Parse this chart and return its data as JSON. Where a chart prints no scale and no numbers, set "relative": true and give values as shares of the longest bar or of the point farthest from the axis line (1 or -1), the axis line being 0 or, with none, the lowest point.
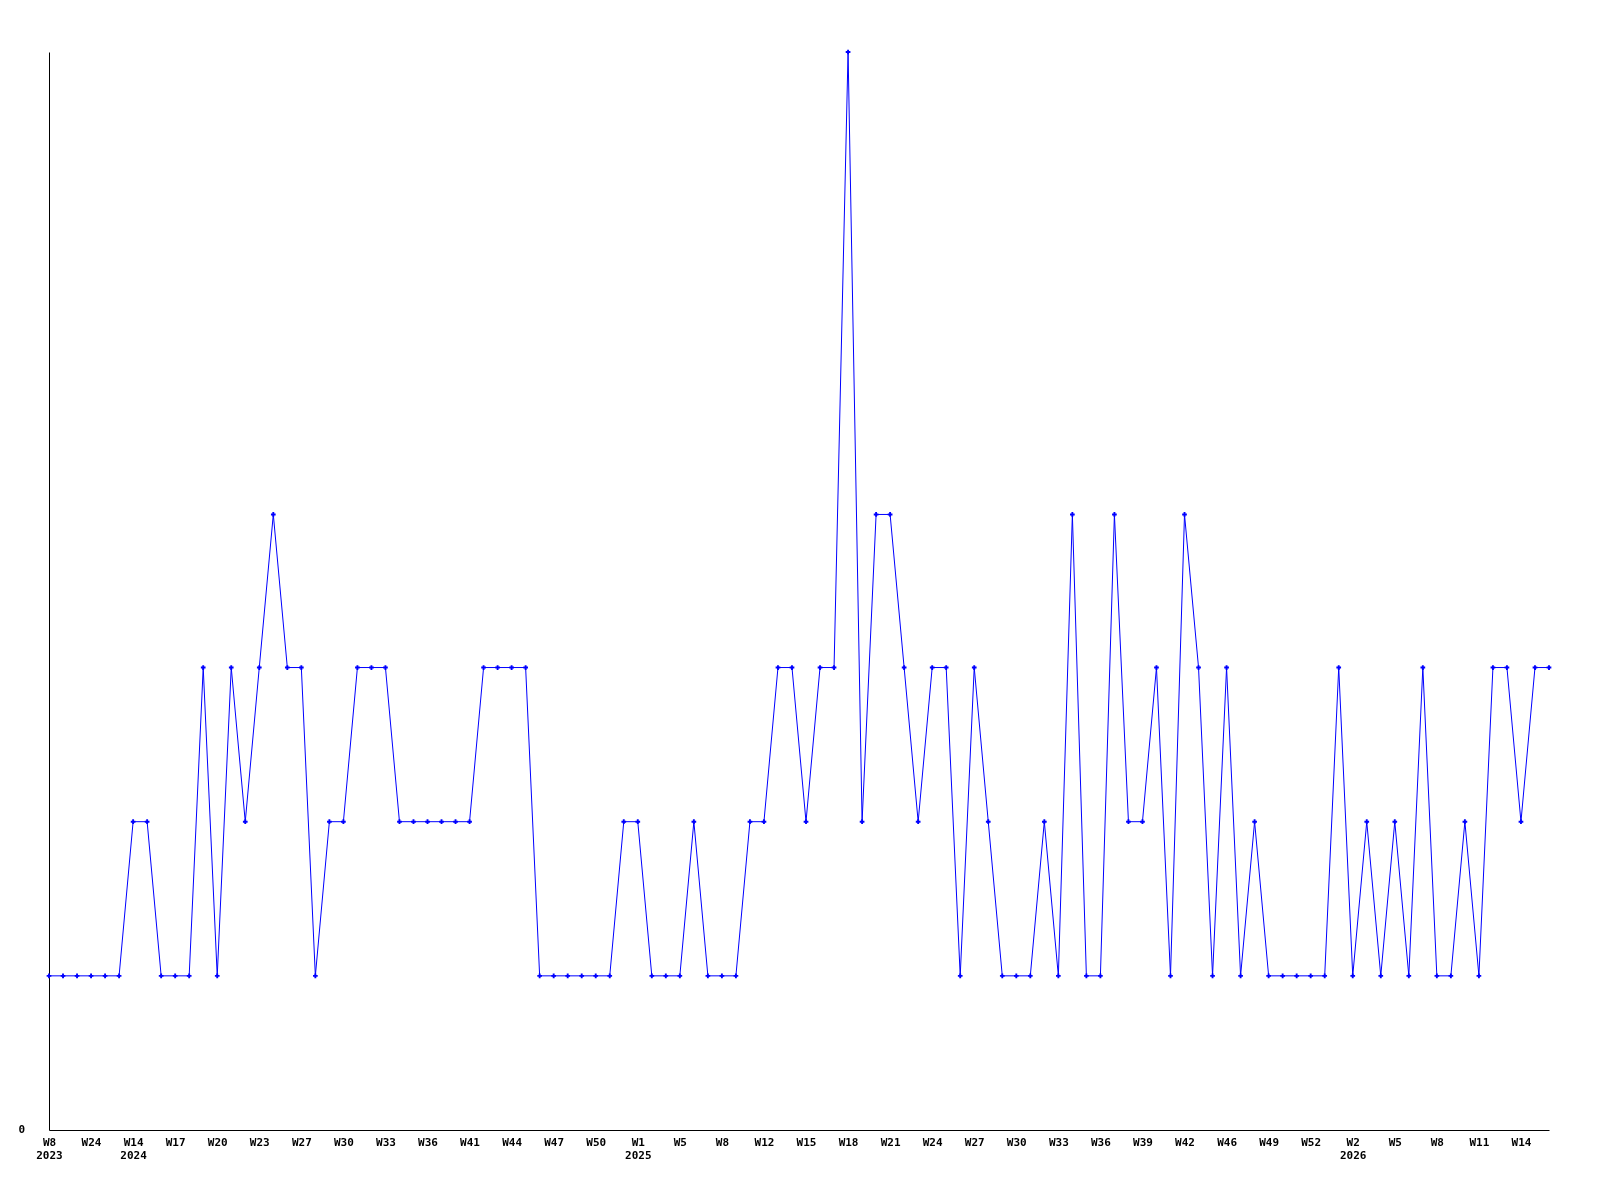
{
  "chart_data": {
    "type": "line",
    "relative": true,
    "marker": "cross",
    "line_style": "solid",
    "grid": false,
    "categories": [
      "W8\n2023",
      null,
      null,
      "W24",
      null,
      null,
      "W14\n2024",
      null,
      null,
      "W17",
      null,
      null,
      "W20",
      null,
      null,
      "W23",
      null,
      null,
      "W27",
      null,
      null,
      "W30",
      null,
      null,
      "W33",
      null,
      null,
      "W36",
      null,
      null,
      "W41",
      null,
      null,
      "W44",
      null,
      null,
      "W47",
      null,
      null,
      "W50",
      null,
      null,
      "W1\n2025",
      null,
      null,
      "W5",
      null,
      null,
      "W8",
      null,
      null,
      "W12",
      null,
      null,
      "W15",
      null,
      null,
      "W18",
      null,
      null,
      "W21",
      null,
      null,
      "W24",
      null,
      null,
      "W27",
      null,
      null,
      "W30",
      null,
      null,
      "W33",
      null,
      null,
      "W36",
      null,
      null,
      "W39",
      null,
      null,
      "W42",
      null,
      null,
      "W46",
      null,
      null,
      "W49",
      null,
      null,
      "W52",
      null,
      null,
      "W2\n2026",
      null,
      null,
      "W5",
      null,
      null,
      "W8",
      null,
      null,
      "W11",
      null,
      null,
      "W14",
      null,
      null
    ],
    "series": [
      {
        "color": "#0000ff",
        "values": [
          0.143,
          0.143,
          0.143,
          0.143,
          0.143,
          0.143,
          0.286,
          0.286,
          0.143,
          0.143,
          0.143,
          0.429,
          0.143,
          0.429,
          0.286,
          0.429,
          0.571,
          0.429,
          0.429,
          0.143,
          0.286,
          0.286,
          0.429,
          0.429,
          0.429,
          0.286,
          0.286,
          0.286,
          0.286,
          0.286,
          0.286,
          0.429,
          0.429,
          0.429,
          0.429,
          0.143,
          0.143,
          0.143,
          0.143,
          0.143,
          0.143,
          0.286,
          0.286,
          0.143,
          0.143,
          0.143,
          0.286,
          0.143,
          0.143,
          0.143,
          0.286,
          0.286,
          0.429,
          0.429,
          0.286,
          0.429,
          0.429,
          1,
          0.286,
          0.571,
          0.571,
          0.429,
          0.286,
          0.429,
          0.429,
          0.143,
          0.429,
          0.286,
          0.143,
          0.143,
          0.143,
          0.286,
          0.143,
          0.571,
          0.143,
          0.143,
          0.571,
          0.286,
          0.286,
          0.429,
          0.143,
          0.571,
          0.429,
          0.143,
          0.429,
          0.143,
          0.286,
          0.143,
          0.143,
          0.143,
          0.143,
          0.143,
          0.429,
          0.143,
          0.286,
          0.143,
          0.286,
          0.143,
          0.429,
          0.143,
          0.143,
          0.286,
          0.143,
          0.429,
          0.429,
          0.286,
          0.429,
          0.429
        ]
      }
    ],
    "annotations": [
      "0"
    ]
  }
}
